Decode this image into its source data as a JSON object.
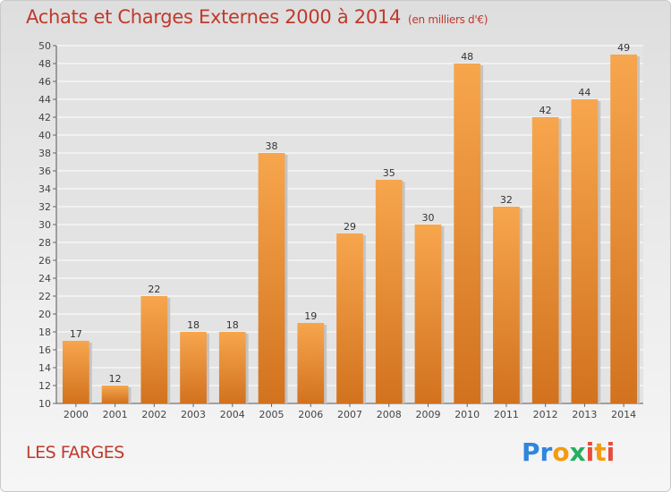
{
  "title": "Achats et Charges Externes 2000 à 2014",
  "subtitle": "(en milliers d'€)",
  "commune": "LES FARGES",
  "logo": {
    "text": "Proxiti"
  },
  "colors": {
    "bar_top": "#f7a64e",
    "bar_bottom": "#d2721e",
    "title": "#c0392b",
    "grid": "#ffffff"
  },
  "chart_data": {
    "type": "bar",
    "title": "Achats et Charges Externes 2000 à 2014",
    "subtitle": "(en milliers d'€)",
    "xlabel": "",
    "ylabel": "",
    "ylim": [
      10,
      50
    ],
    "ytick_step": 2,
    "grid": true,
    "categories": [
      "2000",
      "2001",
      "2002",
      "2003",
      "2004",
      "2005",
      "2006",
      "2007",
      "2008",
      "2009",
      "2010",
      "2011",
      "2012",
      "2013",
      "2014"
    ],
    "values": [
      17,
      12,
      22,
      18,
      18,
      38,
      19,
      29,
      35,
      30,
      48,
      32,
      42,
      44,
      49
    ]
  }
}
